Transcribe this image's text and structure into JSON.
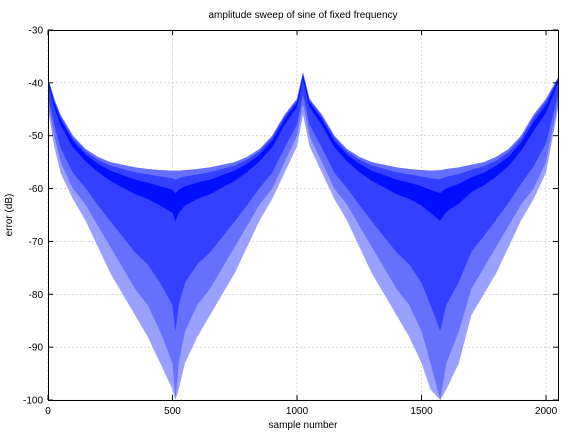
{
  "chart_data": {
    "type": "area",
    "title": "amplitude sweep of sine of fixed frequency",
    "xlabel": "sample number",
    "ylabel": "error (dB)",
    "xlim": [
      0,
      2048
    ],
    "ylim": [
      -100,
      -30
    ],
    "xticks": [
      0,
      500,
      1000,
      1500,
      2000
    ],
    "yticks": [
      -30,
      -40,
      -50,
      -60,
      -70,
      -80,
      -90,
      -100
    ],
    "grid": true,
    "colors": {
      "light_band": "#9aa0ff",
      "mid_band": "#6670ff",
      "main_band": "#3340ff",
      "dark_band": "#0010ff",
      "grid": "#c0c0c0"
    },
    "envelopes": {
      "x": [
        0,
        25,
        50,
        100,
        150,
        200,
        250,
        300,
        350,
        400,
        450,
        500,
        512,
        525,
        550,
        600,
        650,
        700,
        750,
        800,
        850,
        900,
        950,
        1000,
        1024,
        1050,
        1100,
        1150,
        1200,
        1250,
        1300,
        1350,
        1400,
        1450,
        1500,
        1536,
        1575,
        1600,
        1650,
        1700,
        1750,
        1800,
        1850,
        1900,
        1950,
        2000,
        2048
      ],
      "upper": [
        -39,
        -43,
        -46,
        -50,
        -52.5,
        -54,
        -55,
        -55.5,
        -56,
        -56.3,
        -56.5,
        -56.6,
        -56.6,
        -56.6,
        -56.5,
        -56.3,
        -56,
        -55.5,
        -55,
        -54,
        -52.5,
        -50,
        -46,
        -43,
        -38,
        -43,
        -46,
        -50,
        -52.5,
        -54,
        -55,
        -55.5,
        -56,
        -56.3,
        -56.5,
        -56.6,
        -56.5,
        -56.3,
        -56,
        -55.5,
        -55,
        -54,
        -52.5,
        -50,
        -46,
        -43,
        -39
      ],
      "outer_lower": [
        -45,
        -52,
        -57,
        -62,
        -66,
        -71,
        -76,
        -80,
        -84,
        -88,
        -93,
        -98,
        -100,
        -98,
        -93,
        -88,
        -84,
        -80,
        -76,
        -71,
        -66,
        -62,
        -57,
        -52,
        -46,
        -52,
        -57,
        -62,
        -66,
        -71,
        -76,
        -80,
        -84,
        -88,
        -93,
        -98,
        -100,
        -98,
        -93,
        -84,
        -80,
        -76,
        -71,
        -66,
        -62,
        -57,
        -45
      ],
      "main_lower": [
        -44,
        -50,
        -55,
        -60,
        -63,
        -67,
        -71,
        -75,
        -79,
        -82,
        -87,
        -93,
        -100,
        -93,
        -87,
        -82,
        -79,
        -75,
        -71,
        -67,
        -63,
        -60,
        -55,
        -50,
        -44,
        -50,
        -55,
        -60,
        -63,
        -67,
        -71,
        -75,
        -79,
        -82,
        -87,
        -93,
        -100,
        -93,
        -87,
        -79,
        -75,
        -71,
        -67,
        -63,
        -60,
        -55,
        -44
      ]
    }
  }
}
